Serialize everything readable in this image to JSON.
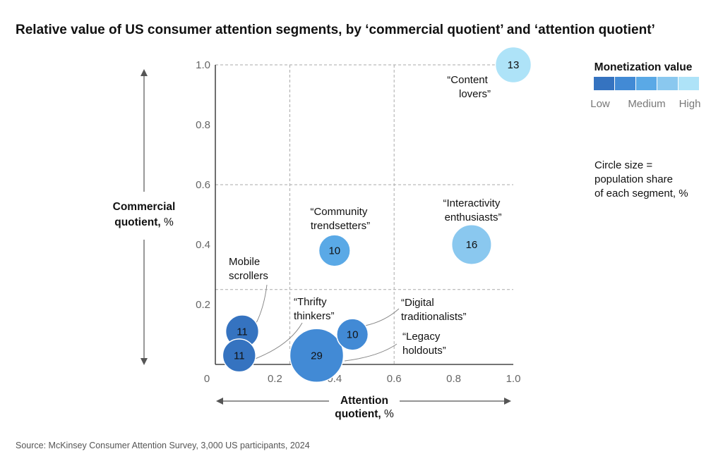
{
  "chart_data": {
    "type": "scatter",
    "title": "Relative value of US consumer attention segments, by ‘commercial quotient’ and ‘attention quotient’",
    "xlabel": {
      "bold": "Attention",
      "bold2": "quotient,",
      "rest": " %"
    },
    "ylabel": {
      "bold1": "Commercial",
      "bold2": "quotient,",
      "rest": " %"
    },
    "xlim": [
      0,
      1.0
    ],
    "ylim": [
      0,
      1.0
    ],
    "x_ticks": [
      {
        "value": 0,
        "label": "0"
      },
      {
        "value": 0.2,
        "label": "0.2"
      },
      {
        "value": 0.4,
        "label": "0.4"
      },
      {
        "value": 0.6,
        "label": "0.6"
      },
      {
        "value": 0.8,
        "label": "0.8"
      },
      {
        "value": 1.0,
        "label": "1.0"
      }
    ],
    "y_ticks": [
      {
        "value": 0.2,
        "label": "0.2"
      },
      {
        "value": 0.4,
        "label": "0.4"
      },
      {
        "value": 0.6,
        "label": "0.6"
      },
      {
        "value": 0.8,
        "label": "0.8"
      },
      {
        "value": 1.0,
        "label": "1.0"
      }
    ],
    "quadrant_lines": {
      "x": [
        0.25,
        0.6
      ],
      "y": [
        0.25,
        0.6
      ]
    },
    "points": [
      {
        "segment_lines": [
          "Mobile",
          "scrollers"
        ],
        "x": 0.09,
        "y": 0.11,
        "size": 11,
        "label": "11",
        "monetization": 1
      },
      {
        "segment_lines": [
          "“Thrifty",
          "thinkers”"
        ],
        "x": 0.08,
        "y": 0.03,
        "size": 11,
        "label": "11",
        "monetization": 1
      },
      {
        "segment_lines": [
          "“Legacy",
          "holdouts”"
        ],
        "x": 0.34,
        "y": 0.03,
        "size": 29,
        "label": "29",
        "monetization": 2
      },
      {
        "segment_lines": [
          "“Digital",
          "traditionalists”"
        ],
        "x": 0.46,
        "y": 0.1,
        "size": 10,
        "label": "10",
        "monetization": 2
      },
      {
        "segment_lines": [
          "“Community",
          "trendsetters”"
        ],
        "x": 0.4,
        "y": 0.38,
        "size": 10,
        "label": "10",
        "monetization": 3
      },
      {
        "segment_lines": [
          "“Interactivity",
          "enthusiasts”"
        ],
        "x": 0.86,
        "y": 0.4,
        "size": 16,
        "label": "16",
        "monetization": 4
      },
      {
        "segment_lines": [
          "“Content",
          "lovers”"
        ],
        "x": 1.0,
        "y": 1.0,
        "size": 13,
        "label": "13",
        "monetization": 5
      }
    ],
    "legend": {
      "title": "Monetization value",
      "colors": [
        "#3573c0",
        "#428ad5",
        "#5aa9e6",
        "#8ac8ef",
        "#aee3f8"
      ],
      "labels": [
        "Low",
        "Medium",
        "High"
      ]
    },
    "size_note": [
      "Circle size =",
      "population share",
      "of each segment, %"
    ]
  },
  "source": "Source: McKinsey Consumer Attention Survey, 3,000 US participants, 2024"
}
